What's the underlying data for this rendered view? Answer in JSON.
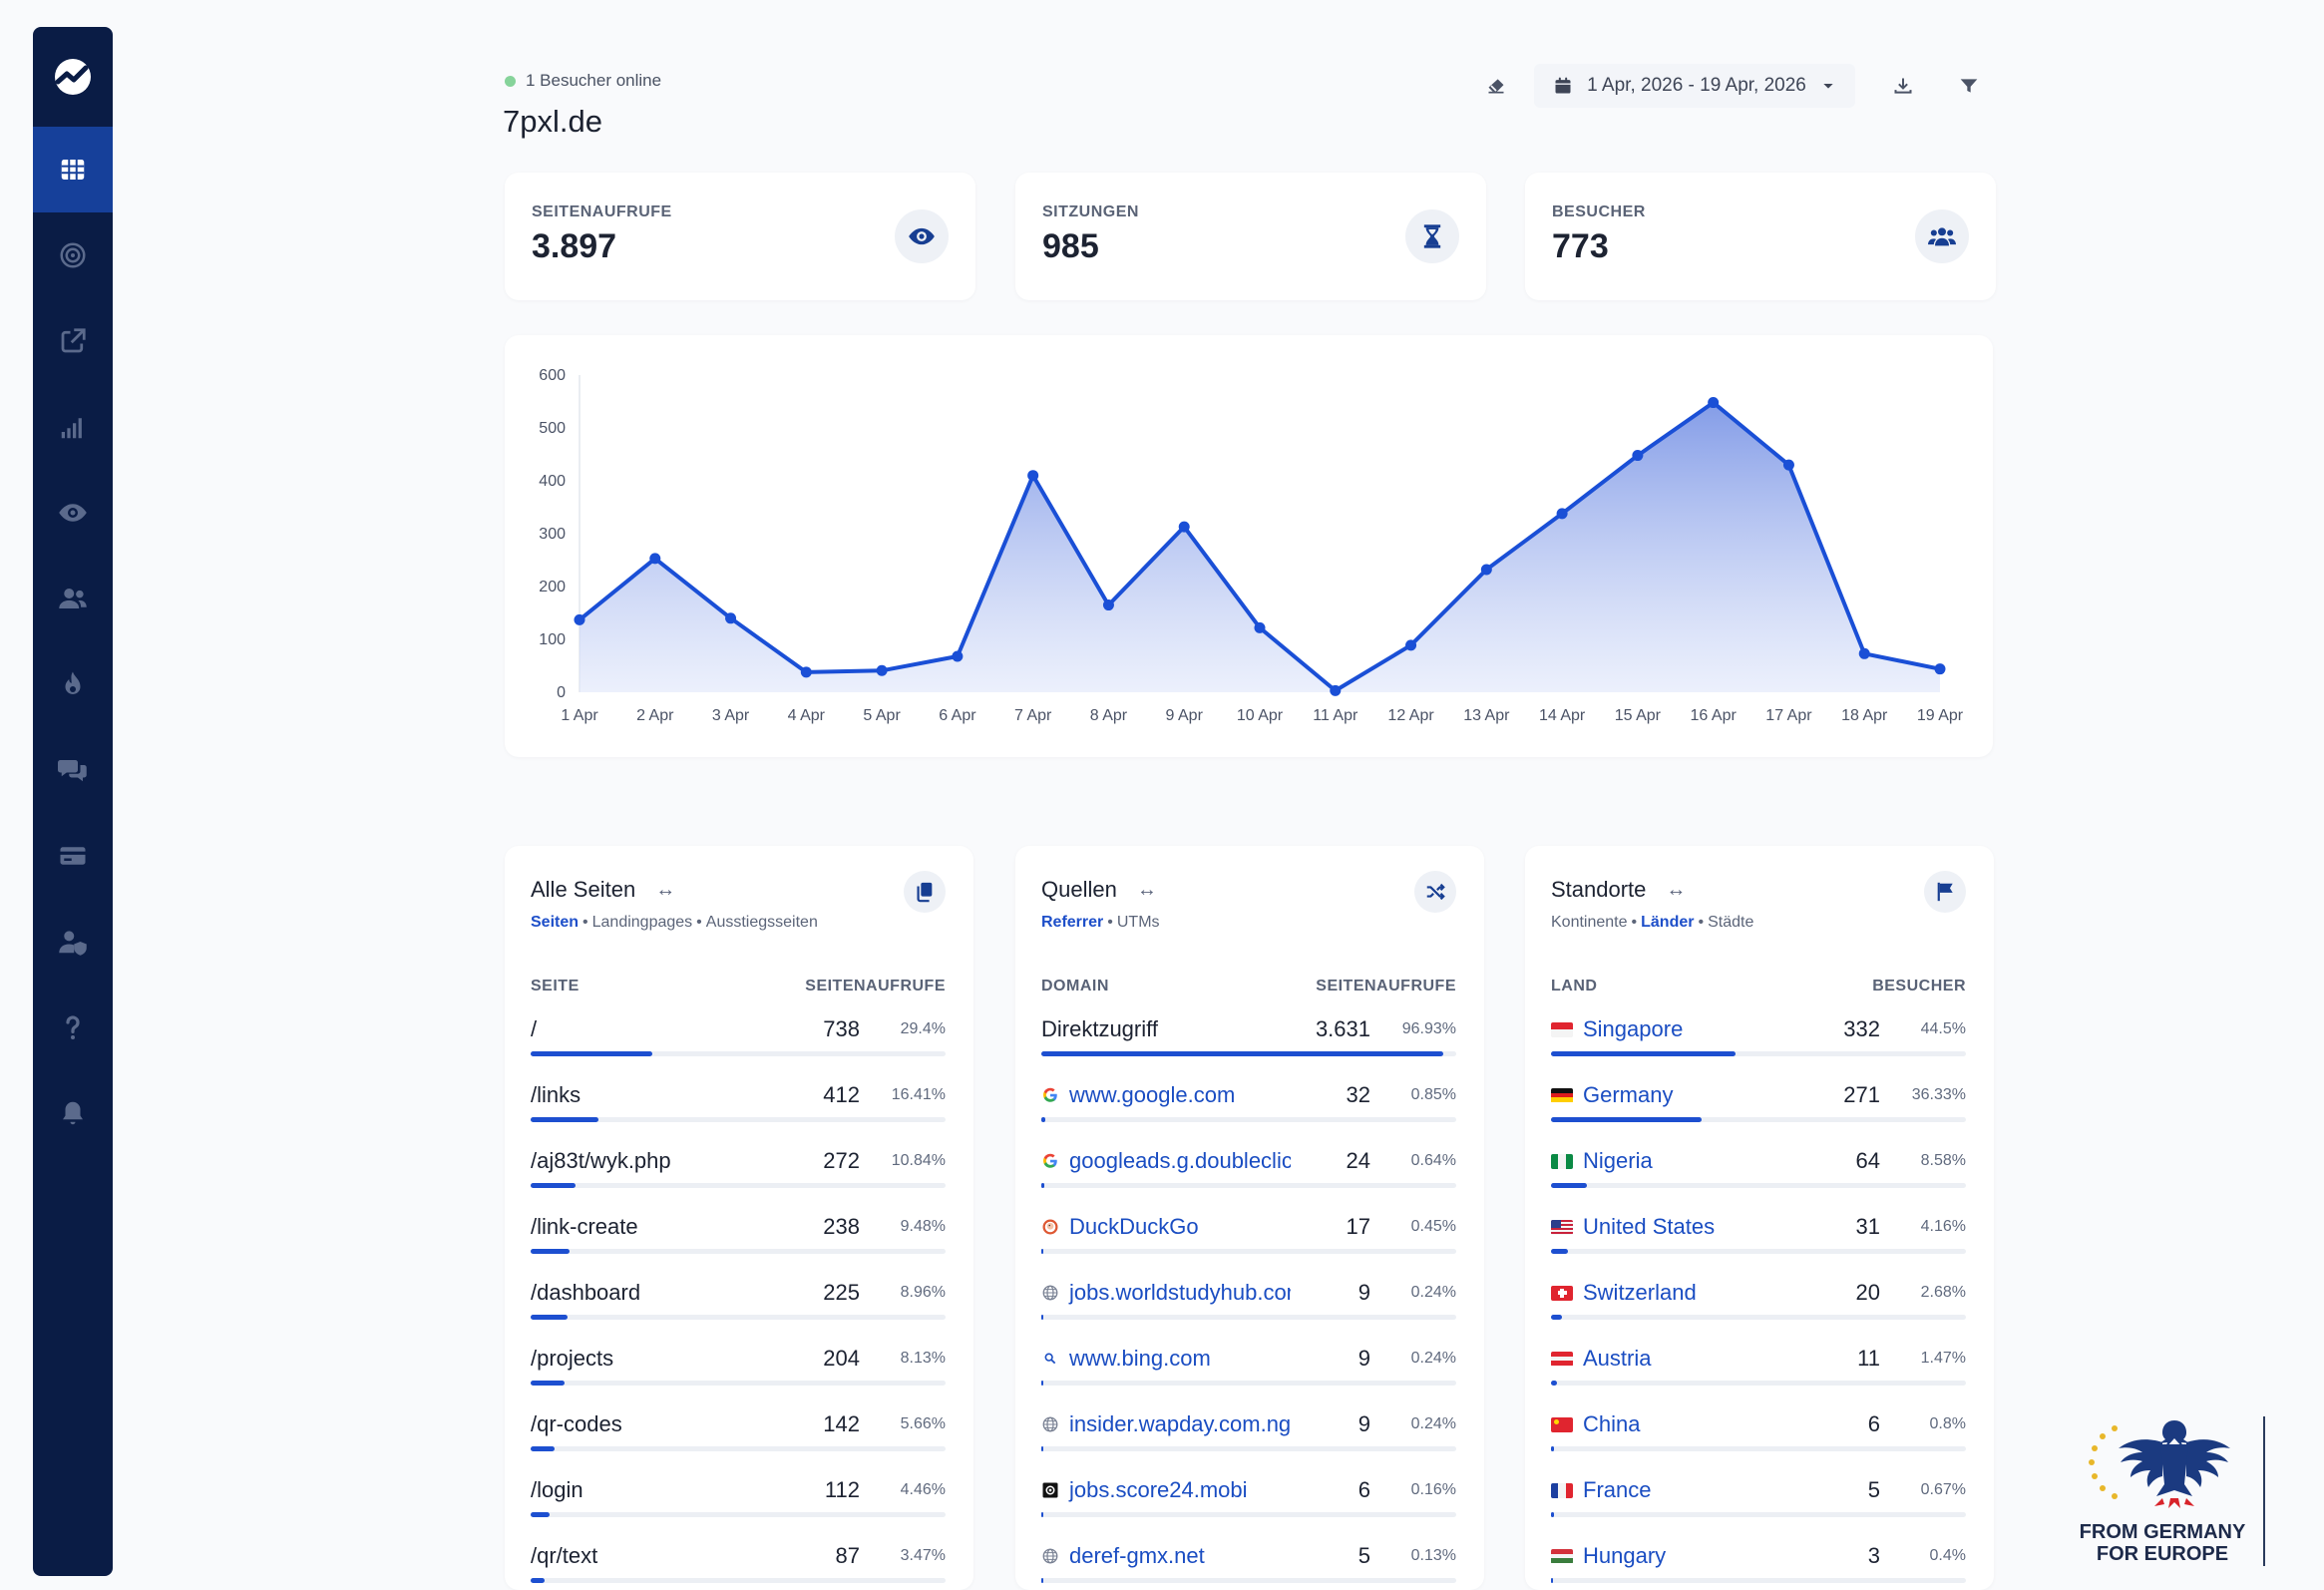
{
  "header": {
    "online_text": "1 Besucher online",
    "site_title": "7pxl.de",
    "date_range": "1 Apr, 2026 - 19 Apr, 2026"
  },
  "sidebar": {
    "items": [
      {
        "icon": "dashboard-grid-icon"
      },
      {
        "icon": "target-icon"
      },
      {
        "icon": "external-link-icon"
      },
      {
        "icon": "signal-bars-icon"
      },
      {
        "icon": "eye-icon"
      },
      {
        "icon": "users-icon"
      },
      {
        "icon": "fire-icon"
      },
      {
        "icon": "comments-icon"
      },
      {
        "icon": "credit-card-icon"
      },
      {
        "icon": "user-shield-icon"
      },
      {
        "icon": "question-icon"
      },
      {
        "icon": "bell-icon"
      }
    ]
  },
  "stats": [
    {
      "label": "SEITENAUFRUFE",
      "value": "3.897",
      "icon": "eye-icon"
    },
    {
      "label": "SITZUNGEN",
      "value": "985",
      "icon": "hourglass-icon"
    },
    {
      "label": "BESUCHER",
      "value": "773",
      "icon": "users-icon"
    }
  ],
  "chart_data": {
    "type": "area",
    "categories": [
      "1 Apr",
      "2 Apr",
      "3 Apr",
      "4 Apr",
      "5 Apr",
      "6 Apr",
      "7 Apr",
      "8 Apr",
      "9 Apr",
      "10 Apr",
      "11 Apr",
      "12 Apr",
      "13 Apr",
      "14 Apr",
      "15 Apr",
      "16 Apr",
      "17 Apr",
      "18 Apr",
      "19 Apr"
    ],
    "values": [
      137,
      253,
      140,
      38,
      41,
      68,
      410,
      165,
      313,
      122,
      3,
      89,
      232,
      338,
      448,
      548,
      430,
      73,
      44
    ],
    "yticks": [
      0,
      100,
      200,
      300,
      400,
      500,
      600
    ],
    "ylim": [
      0,
      600
    ],
    "color": "#1a4fd6"
  },
  "pages_card": {
    "title": "Alle Seiten",
    "tabs": [
      "Seiten",
      "Landingpages",
      "Ausstiegsseiten"
    ],
    "active_tab": 0,
    "col_left": "SEITE",
    "col_right": "SEITENAUFRUFE",
    "rows": [
      {
        "label": "/",
        "count": "738",
        "pct": "29.4%",
        "share": 0.294
      },
      {
        "label": "/links",
        "count": "412",
        "pct": "16.41%",
        "share": 0.1641
      },
      {
        "label": "/aj83t/wyk.php",
        "count": "272",
        "pct": "10.84%",
        "share": 0.1084
      },
      {
        "label": "/link-create",
        "count": "238",
        "pct": "9.48%",
        "share": 0.0948
      },
      {
        "label": "/dashboard",
        "count": "225",
        "pct": "8.96%",
        "share": 0.0896
      },
      {
        "label": "/projects",
        "count": "204",
        "pct": "8.13%",
        "share": 0.0813
      },
      {
        "label": "/qr-codes",
        "count": "142",
        "pct": "5.66%",
        "share": 0.0566
      },
      {
        "label": "/login",
        "count": "112",
        "pct": "4.46%",
        "share": 0.0446
      },
      {
        "label": "/qr/text",
        "count": "87",
        "pct": "3.47%",
        "share": 0.0347
      }
    ]
  },
  "sources_card": {
    "title": "Quellen",
    "tabs": [
      "Referrer",
      "UTMs"
    ],
    "active_tab": 0,
    "col_left": "DOMAIN",
    "col_right": "SEITENAUFRUFE",
    "rows": [
      {
        "label": "Direktzugriff",
        "count": "3.631",
        "pct": "96.93%",
        "share": 0.9693,
        "icon": "none",
        "link": false
      },
      {
        "label": "www.google.com",
        "count": "32",
        "pct": "0.85%",
        "share": 0.0085,
        "icon": "google-icon",
        "link": true
      },
      {
        "label": "googleads.g.doubleclic...",
        "count": "24",
        "pct": "0.64%",
        "share": 0.0064,
        "icon": "google-icon",
        "link": true
      },
      {
        "label": "DuckDuckGo",
        "count": "17",
        "pct": "0.45%",
        "share": 0.0045,
        "icon": "duckduckgo-icon",
        "link": true
      },
      {
        "label": "jobs.worldstudyhub.com ...",
        "count": "9",
        "pct": "0.24%",
        "share": 0.0024,
        "icon": "globe-icon",
        "link": true
      },
      {
        "label": "www.bing.com",
        "count": "9",
        "pct": "0.24%",
        "share": 0.0024,
        "icon": "search-icon",
        "link": true
      },
      {
        "label": "insider.wapday.com.ng",
        "count": "9",
        "pct": "0.24%",
        "share": 0.0024,
        "icon": "globe-icon",
        "link": true
      },
      {
        "label": "jobs.score24.mobi",
        "count": "6",
        "pct": "0.16%",
        "share": 0.0016,
        "icon": "score24-icon",
        "link": true
      },
      {
        "label": "deref-gmx.net",
        "count": "5",
        "pct": "0.13%",
        "share": 0.0013,
        "icon": "globe-icon",
        "link": true
      }
    ]
  },
  "locations_card": {
    "title": "Standorte",
    "tabs": [
      "Kontinente",
      "Länder",
      "Städte"
    ],
    "active_tab": 1,
    "col_left": "LAND",
    "col_right": "BESUCHER",
    "rows": [
      {
        "label": "Singapore",
        "count": "332",
        "pct": "44.5%",
        "share": 0.445,
        "flag": "sg"
      },
      {
        "label": "Germany",
        "count": "271",
        "pct": "36.33%",
        "share": 0.3633,
        "flag": "de"
      },
      {
        "label": "Nigeria",
        "count": "64",
        "pct": "8.58%",
        "share": 0.0858,
        "flag": "ng"
      },
      {
        "label": "United States",
        "count": "31",
        "pct": "4.16%",
        "share": 0.0416,
        "flag": "us"
      },
      {
        "label": "Switzerland",
        "count": "20",
        "pct": "2.68%",
        "share": 0.0268,
        "flag": "ch"
      },
      {
        "label": "Austria",
        "count": "11",
        "pct": "1.47%",
        "share": 0.0147,
        "flag": "at"
      },
      {
        "label": "China",
        "count": "6",
        "pct": "0.8%",
        "share": 0.008,
        "flag": "cn"
      },
      {
        "label": "France",
        "count": "5",
        "pct": "0.67%",
        "share": 0.0067,
        "flag": "fr"
      },
      {
        "label": "Hungary",
        "count": "3",
        "pct": "0.4%",
        "share": 0.004,
        "flag": "hu"
      }
    ]
  },
  "badge": {
    "line1": "FROM GERMANY",
    "line2": "FOR EUROPE"
  }
}
